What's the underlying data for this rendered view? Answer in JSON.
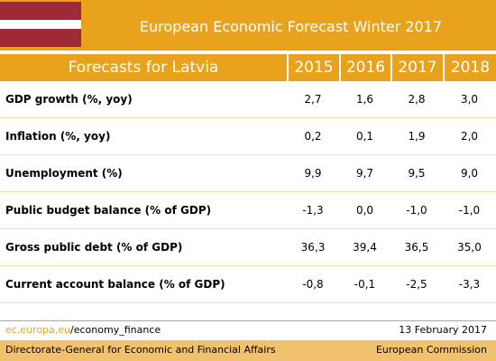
{
  "header": {
    "title": "European Economic Forecast Winter 2017"
  },
  "table": {
    "columns": [
      "Forecasts for Latvia",
      "2015",
      "2016",
      "2017",
      "2018"
    ],
    "rows": [
      [
        "GDP growth (%, yoy)",
        "2,7",
        "1,6",
        "2,8",
        "3,0"
      ],
      [
        "Inflation (%, yoy)",
        "0,2",
        "0,1",
        "1,9",
        "2,0"
      ],
      [
        "Unemployment (%)",
        "9,9",
        "9,7",
        "9,5",
        "9,0"
      ],
      [
        "Public budget balance (% of GDP)",
        "-1,3",
        "0,0",
        "-1,0",
        "-1,0"
      ],
      [
        "Gross public debt (% of GDP)",
        "36,3",
        "39,4",
        "36,5",
        "35,0"
      ],
      [
        "Current account balance (% of GDP)",
        "-0,8",
        "-0,1",
        "-2,5",
        "-3,3"
      ]
    ]
  },
  "footer": {
    "link_domain": "ec.europa.eu",
    "link_path": "/economy_finance",
    "date": "13 February 2017"
  },
  "bottom": {
    "left": "Directorate-General for Economic and Financial Affairs",
    "right": "European Commission"
  }
}
